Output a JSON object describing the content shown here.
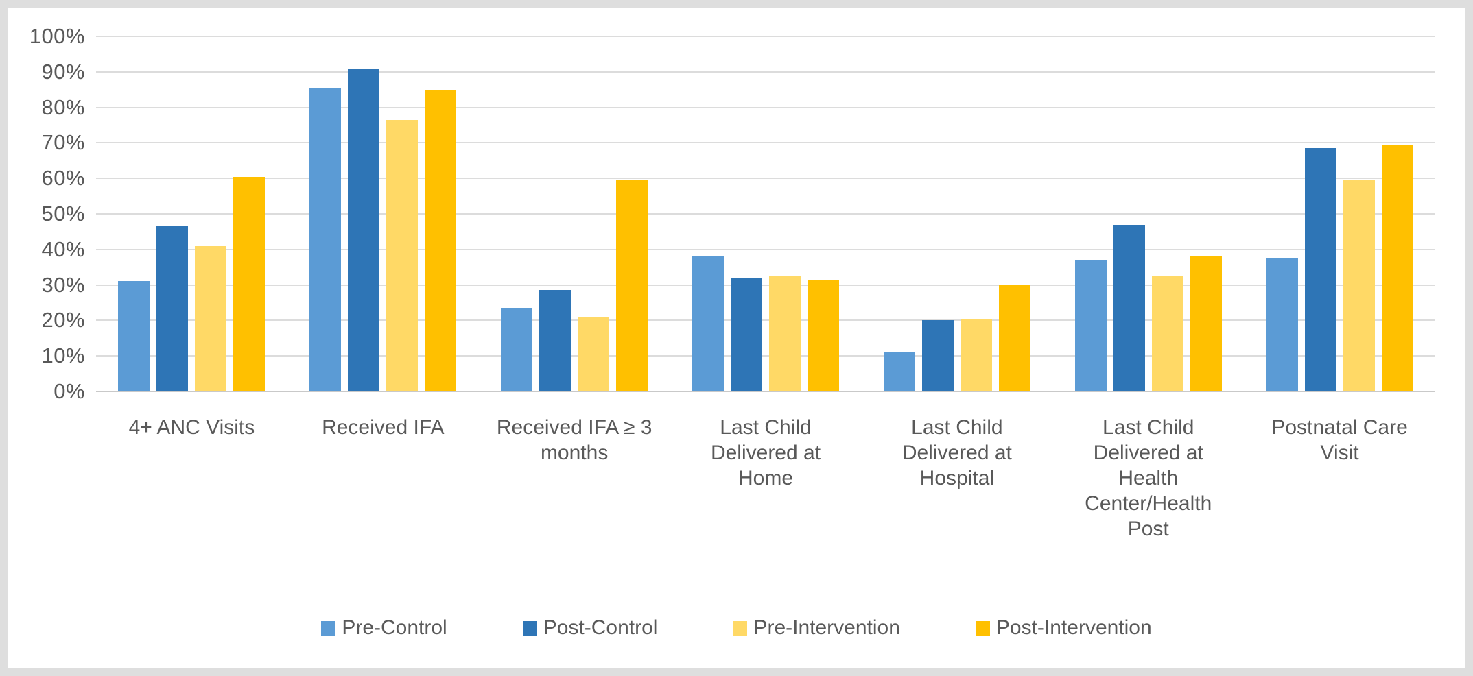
{
  "colors": {
    "pre_control": "#5B9BD5",
    "post_control": "#2E75B6",
    "pre_intervention": "#FFD966",
    "post_intervention": "#FFC000",
    "gridline": "#DCDCDC",
    "axis_text": "#595959",
    "frame": "#DEDEDE",
    "plot_background": "#FFFFFF"
  },
  "chart_data": {
    "type": "bar",
    "title": "",
    "xlabel": "",
    "ylabel": "",
    "ylim": [
      0,
      100
    ],
    "y_ticks": [
      0,
      10,
      20,
      30,
      40,
      50,
      60,
      70,
      80,
      90,
      100
    ],
    "y_tick_labels": [
      "0%",
      "10%",
      "20%",
      "30%",
      "40%",
      "50%",
      "60%",
      "70%",
      "80%",
      "90%",
      "100%"
    ],
    "grid": "horizontal",
    "legend_position": "bottom",
    "categories": [
      "4+ ANC Visits",
      "Received IFA",
      "Received IFA ≥ 3 months",
      "Last Child Delivered at Home",
      "Last Child Delivered at Hospital",
      "Last Child Delivered at Health Center/Health Post",
      "Postnatal Care Visit"
    ],
    "series": [
      {
        "name": "Pre-Control",
        "color": "#5B9BD5",
        "values": [
          31,
          85.5,
          23.5,
          38,
          11,
          37,
          37.5
        ]
      },
      {
        "name": "Post-Control",
        "color": "#2E75B6",
        "values": [
          46.5,
          91,
          28.5,
          32,
          20,
          47,
          68.5
        ]
      },
      {
        "name": "Pre-Intervention",
        "color": "#FFD966",
        "values": [
          41,
          76.5,
          21,
          32.5,
          20.5,
          32.5,
          59.5
        ]
      },
      {
        "name": "Post-Intervention",
        "color": "#FFC000",
        "values": [
          60.5,
          85,
          59.5,
          31.5,
          30,
          38,
          69.5
        ]
      }
    ]
  }
}
